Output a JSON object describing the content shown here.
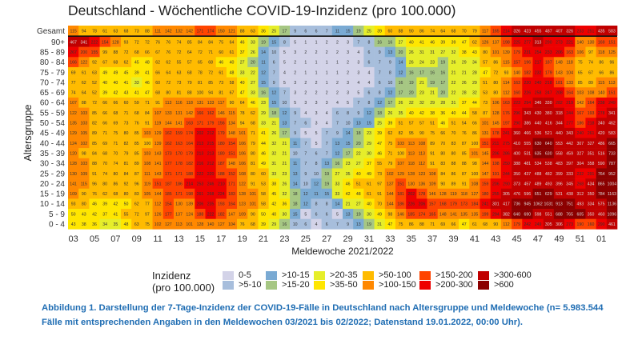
{
  "chart_data": {
    "type": "heatmap",
    "title": "Deutschland - Wöchentliche COVID-19-Inzidenz (pro 100.000)",
    "xlabel": "Meldewoche 2021/2022",
    "ylabel": "Altersgruppe",
    "x_tick_labels": [
      "03",
      "05",
      "07",
      "09",
      "11",
      "13",
      "15",
      "17",
      "19",
      "21",
      "23",
      "25",
      "27",
      "29",
      "31",
      "33",
      "35",
      "37",
      "39",
      "41",
      "43",
      "45",
      "47",
      "49",
      "51",
      "01"
    ],
    "rows": [
      "Gesamt",
      "90+",
      "85 - 89",
      "80 - 84",
      "75 - 79",
      "70 - 74",
      "65 - 69",
      "60 - 64",
      "55 - 59",
      "50 - 54",
      "45 - 49",
      "40 - 44",
      "35 - 39",
      "30 - 34",
      "25 - 29",
      "20 - 24",
      "15 - 19",
      "10 - 14",
      "5 - 9",
      "0 - 4"
    ],
    "values": [
      [
        115,
        94,
        78,
        61,
        63,
        68,
        73,
        88,
        111,
        142,
        132,
        142,
        171,
        174,
        150,
        121,
        88,
        63,
        36,
        25,
        17,
        9,
        6,
        6,
        7,
        11,
        15,
        19,
        25,
        39,
        60,
        88,
        90,
        86,
        74,
        64,
        68,
        70,
        79,
        117,
        165,
        214,
        326,
        423,
        455,
        487,
        407,
        326,
        233,
        251,
        435,
        583
      ],
      [
        467,
        341,
        222,
        154,
        128,
        93,
        72,
        72,
        76,
        76,
        74,
        85,
        84,
        84,
        75,
        64,
        46,
        33,
        19,
        15,
        8,
        5,
        1,
        1,
        2,
        2,
        3,
        7,
        8,
        16,
        16,
        27,
        40,
        41,
        46,
        39,
        39,
        47,
        62,
        126,
        137,
        198,
        225,
        277,
        313,
        290,
        273,
        221,
        140,
        130,
        169,
        151
      ],
      [
        267,
        200,
        155,
        99,
        88,
        72,
        68,
        66,
        67,
        76,
        72,
        64,
        72,
        71,
        60,
        61,
        37,
        26,
        14,
        10,
        5,
        3,
        2,
        2,
        2,
        2,
        3,
        4,
        6,
        9,
        13,
        20,
        26,
        31,
        31,
        27,
        32,
        38,
        43,
        80,
        101,
        139,
        179,
        231,
        254,
        233,
        206,
        163,
        106,
        97,
        118,
        125
      ],
      [
        166,
        122,
        92,
        67,
        68,
        62,
        45,
        48,
        62,
        62,
        55,
        57,
        65,
        68,
        46,
        40,
        27,
        20,
        11,
        6,
        5,
        2,
        1,
        1,
        1,
        1,
        2,
        3,
        6,
        7,
        9,
        14,
        26,
        24,
        23,
        19,
        26,
        29,
        34,
        57,
        86,
        115,
        157,
        196,
        217,
        187,
        148,
        118,
        75,
        74,
        86,
        96
      ],
      [
        69,
        61,
        63,
        49,
        49,
        45,
        39,
        41,
        66,
        64,
        63,
        68,
        78,
        72,
        61,
        48,
        33,
        22,
        12,
        7,
        4,
        2,
        1,
        1,
        1,
        1,
        2,
        3,
        4,
        7,
        8,
        12,
        16,
        17,
        16,
        16,
        21,
        21,
        28,
        47,
        72,
        93,
        140,
        182,
        232,
        179,
        143,
        104,
        65,
        67,
        66,
        86
      ],
      [
        77,
        62,
        52,
        40,
        40,
        41,
        33,
        46,
        60,
        72,
        73,
        79,
        81,
        85,
        73,
        58,
        40,
        27,
        15,
        9,
        5,
        3,
        2,
        2,
        1,
        2,
        3,
        4,
        4,
        6,
        10,
        16,
        19,
        21,
        19,
        17,
        22,
        26,
        29,
        51,
        80,
        114,
        163,
        220,
        240,
        218,
        181,
        133,
        85,
        89,
        115,
        113
      ],
      [
        74,
        64,
        52,
        39,
        42,
        43,
        41,
        47,
        68,
        80,
        81,
        88,
        100,
        94,
        81,
        67,
        47,
        33,
        16,
        12,
        7,
        3,
        2,
        2,
        2,
        2,
        3,
        5,
        6,
        8,
        12,
        17,
        20,
        23,
        21,
        20,
        22,
        28,
        32,
        53,
        80,
        112,
        160,
        226,
        258,
        247,
        208,
        164,
        103,
        108,
        140,
        151
      ],
      [
        107,
        88,
        72,
        66,
        66,
        60,
        59,
        71,
        91,
        113,
        116,
        118,
        131,
        133,
        117,
        90,
        64,
        46,
        23,
        15,
        10,
        5,
        3,
        3,
        3,
        4,
        5,
        7,
        8,
        12,
        17,
        26,
        32,
        32,
        29,
        28,
        31,
        37,
        44,
        73,
        106,
        163,
        223,
        294,
        346,
        330,
        282,
        219,
        142,
        164,
        238,
        249
      ],
      [
        122,
        103,
        85,
        66,
        68,
        71,
        68,
        84,
        107,
        133,
        131,
        142,
        166,
        162,
        146,
        115,
        78,
        62,
        29,
        18,
        12,
        9,
        4,
        3,
        4,
        6,
        8,
        9,
        12,
        18,
        26,
        35,
        40,
        42,
        38,
        36,
        40,
        44,
        58,
        87,
        128,
        176,
        296,
        343,
        430,
        380,
        318,
        244,
        167,
        193,
        278,
        341
      ],
      [
        135,
        103,
        82,
        66,
        69,
        73,
        76,
        91,
        119,
        144,
        141,
        163,
        171,
        179,
        156,
        134,
        94,
        68,
        33,
        21,
        13,
        7,
        6,
        3,
        4,
        7,
        10,
        13,
        15,
        25,
        39,
        51,
        57,
        57,
        51,
        46,
        51,
        54,
        66,
        101,
        145,
        197,
        290,
        386,
        440,
        416,
        344,
        277,
        186,
        218,
        340,
        462
      ],
      [
        129,
        105,
        89,
        71,
        75,
        80,
        85,
        103,
        129,
        162,
        159,
        174,
        202,
        212,
        179,
        148,
        101,
        71,
        41,
        26,
        17,
        9,
        5,
        5,
        7,
        9,
        14,
        18,
        23,
        39,
        62,
        82,
        95,
        90,
        75,
        66,
        70,
        76,
        86,
        131,
        178,
        241,
        360,
        466,
        536,
        521,
        440,
        343,
        240,
        261,
        420,
        583
      ],
      [
        124,
        102,
        85,
        69,
        71,
        82,
        85,
        100,
        139,
        162,
        163,
        164,
        213,
        215,
        180,
        154,
        106,
        79,
        44,
        32,
        21,
        11,
        7,
        5,
        7,
        13,
        15,
        20,
        29,
        47,
        75,
        103,
        113,
        108,
        89,
        70,
        83,
        87,
        100,
        151,
        211,
        275,
        410,
        555,
        630,
        640,
        553,
        442,
        307,
        327,
        486,
        665
      ],
      [
        120,
        98,
        84,
        68,
        70,
        79,
        85,
        103,
        143,
        173,
        170,
        179,
        213,
        213,
        180,
        151,
        106,
        80,
        46,
        32,
        21,
        10,
        7,
        6,
        7,
        12,
        17,
        22,
        30,
        46,
        71,
        100,
        113,
        113,
        91,
        80,
        80,
        85,
        101,
        145,
        206,
        286,
        400,
        531,
        635,
        630,
        558,
        459,
        327,
        351,
        516,
        733
      ],
      [
        128,
        103,
        88,
        70,
        74,
        81,
        89,
        108,
        141,
        177,
        178,
        182,
        216,
        212,
        187,
        148,
        106,
        81,
        49,
        31,
        21,
        11,
        7,
        8,
        13,
        16,
        23,
        27,
        37,
        55,
        79,
        107,
        118,
        112,
        91,
        83,
        88,
        88,
        98,
        144,
        198,
        250,
        388,
        481,
        534,
        538,
        483,
        397,
        304,
        358,
        590,
        787
      ],
      [
        130,
        109,
        91,
        74,
        80,
        84,
        87,
        111,
        143,
        171,
        171,
        188,
        222,
        220,
        188,
        152,
        108,
        80,
        60,
        33,
        23,
        13,
        9,
        10,
        19,
        27,
        35,
        40,
        49,
        73,
        102,
        129,
        128,
        123,
        108,
        84,
        86,
        87,
        100,
        147,
        191,
        244,
        350,
        437,
        488,
        482,
        399,
        333,
        232,
        291,
        764,
        952
      ],
      [
        141,
        115,
        96,
        80,
        86,
        92,
        96,
        119,
        151,
        187,
        186,
        214,
        253,
        246,
        210,
        171,
        122,
        91,
        53,
        38,
        26,
        14,
        10,
        12,
        19,
        33,
        46,
        51,
        61,
        97,
        137,
        151,
        130,
        136,
        109,
        90,
        89,
        91,
        108,
        159,
        206,
        290,
        373,
        457,
        489,
        493,
        396,
        345,
        268,
        434,
        865,
        1004
      ],
      [
        109,
        90,
        76,
        62,
        68,
        80,
        83,
        105,
        144,
        185,
        171,
        198,
        261,
        268,
        224,
        183,
        128,
        101,
        58,
        45,
        32,
        18,
        12,
        11,
        15,
        33,
        42,
        48,
        61,
        91,
        144,
        181,
        202,
        178,
        146,
        128,
        119,
        118,
        127,
        180,
        255,
        305,
        476,
        596,
        651,
        629,
        531,
        438,
        312,
        350,
        784,
        1163
      ],
      [
        93,
        80,
        46,
        39,
        42,
        50,
        62,
        77,
        112,
        154,
        130,
        139,
        206,
        235,
        193,
        164,
        123,
        101,
        58,
        42,
        36,
        18,
        12,
        8,
        8,
        14,
        21,
        27,
        40,
        70,
        144,
        186,
        226,
        206,
        157,
        168,
        179,
        173,
        184,
        241,
        301,
        417,
        736,
        945,
        1062,
        1031,
        913,
        751,
        493,
        334,
        575,
        1136
      ],
      [
        50,
        43,
        42,
        37,
        41,
        55,
        72,
        97,
        126,
        177,
        137,
        124,
        188,
        222,
        182,
        147,
        109,
        90,
        50,
        40,
        30,
        15,
        5,
        6,
        6,
        5,
        13,
        19,
        30,
        49,
        98,
        146,
        185,
        174,
        165,
        148,
        141,
        135,
        135,
        199,
        294,
        382,
        640,
        690,
        598,
        551,
        688,
        765,
        605,
        350,
        460,
        1096
      ],
      [
        43,
        38,
        36,
        34,
        35,
        48,
        63,
        75,
        102,
        127,
        113,
        101,
        128,
        140,
        127,
        104,
        76,
        68,
        39,
        29,
        16,
        10,
        6,
        4,
        6,
        7,
        9,
        13,
        19,
        31,
        47,
        75,
        86,
        88,
        71,
        69,
        66,
        47,
        61,
        68,
        90,
        112,
        179,
        242,
        249,
        305,
        306,
        273,
        190,
        160,
        290,
        461
      ]
    ],
    "legend": {
      "title": "Inzidenz",
      "subtitle": "(pro 100.000)",
      "bins": [
        {
          "label": "0-5",
          "max": 5,
          "color": "#d3d3e8"
        },
        {
          "label": ">5-10",
          "max": 10,
          "color": "#a7bedc"
        },
        {
          "label": ">10-15",
          "max": 15,
          "color": "#7aaad3"
        },
        {
          "label": ">15-20",
          "max": 20,
          "color": "#a6c783"
        },
        {
          "label": ">20-35",
          "max": 35,
          "color": "#e6ee2a"
        },
        {
          "label": ">35-50",
          "max": 50,
          "color": "#ffe600"
        },
        {
          "label": ">50-100",
          "max": 100,
          "color": "#ffbb00"
        },
        {
          "label": ">100-150",
          "max": 150,
          "color": "#ff8800"
        },
        {
          "label": ">150-200",
          "max": 200,
          "color": "#ff4400"
        },
        {
          "label": ">200-300",
          "max": 300,
          "color": "#ee0000"
        },
        {
          "label": ">300-600",
          "max": 600,
          "color": "#c00000"
        },
        {
          "label": ">600",
          "max": 1000000,
          "color": "#8b0000"
        }
      ]
    }
  },
  "caption": "Abbildung 1. Darstellung der 7-Tage-Inzidenz der COVID-19-Fälle in Deutschland nach Altersgruppe und Meldewoche (n= 5.983.544 Fälle mit entsprechenden Angaben in den Meldewochen 03/2021 bis 02/2022; Datenstand 19.01.2022, 00:00 Uhr)."
}
